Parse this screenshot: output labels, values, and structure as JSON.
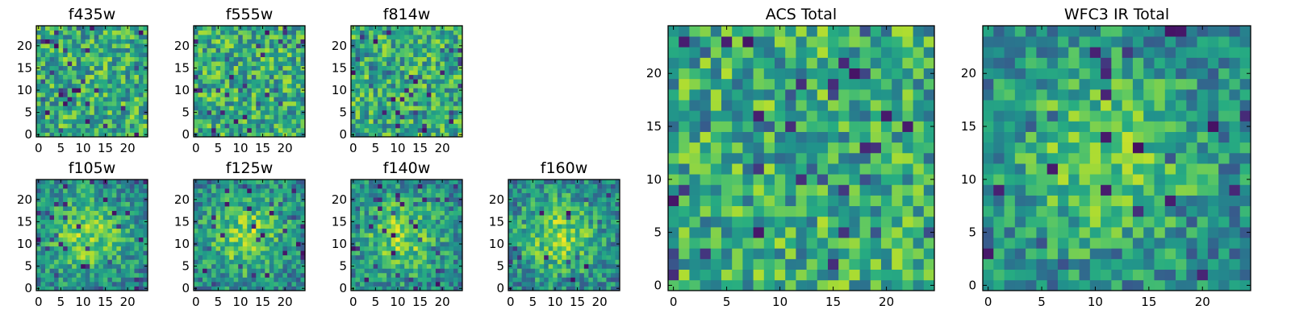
{
  "chart_data": [
    {
      "id": "f435w",
      "type": "heatmap",
      "title": "f435w",
      "shape": [
        25,
        25
      ],
      "colormap": "viridis",
      "xlim": [
        0,
        24
      ],
      "ylim": [
        0,
        24
      ],
      "xticks": [
        0,
        5,
        10,
        15,
        20
      ],
      "yticks": [
        0,
        5,
        10,
        15,
        20
      ],
      "texture": "noise",
      "seed": 11
    },
    {
      "id": "f555w",
      "type": "heatmap",
      "title": "f555w",
      "shape": [
        25,
        25
      ],
      "colormap": "viridis",
      "xlim": [
        0,
        24
      ],
      "ylim": [
        0,
        24
      ],
      "xticks": [
        0,
        5,
        10,
        15,
        20
      ],
      "yticks": [
        0,
        5,
        10,
        15,
        20
      ],
      "texture": "noise",
      "seed": 23
    },
    {
      "id": "f814w",
      "type": "heatmap",
      "title": "f814w",
      "shape": [
        25,
        25
      ],
      "colormap": "viridis",
      "xlim": [
        0,
        24
      ],
      "ylim": [
        0,
        24
      ],
      "xticks": [
        0,
        5,
        10,
        15,
        20
      ],
      "yticks": [
        0,
        5,
        10,
        15,
        20
      ],
      "texture": "noise",
      "seed": 37
    },
    {
      "id": "f105w",
      "type": "heatmap",
      "title": "f105w",
      "shape": [
        25,
        25
      ],
      "colormap": "viridis",
      "xlim": [
        0,
        24
      ],
      "ylim": [
        0,
        24
      ],
      "xticks": [
        0,
        5,
        10,
        15,
        20
      ],
      "yticks": [
        0,
        5,
        10,
        15,
        20
      ],
      "texture": "centered-blob",
      "seed": 41
    },
    {
      "id": "f125w",
      "type": "heatmap",
      "title": "f125w",
      "shape": [
        25,
        25
      ],
      "colormap": "viridis",
      "xlim": [
        0,
        24
      ],
      "ylim": [
        0,
        24
      ],
      "xticks": [
        0,
        5,
        10,
        15,
        20
      ],
      "yticks": [
        0,
        5,
        10,
        15,
        20
      ],
      "texture": "centered-blob",
      "seed": 53
    },
    {
      "id": "f140w",
      "type": "heatmap",
      "title": "f140w",
      "shape": [
        25,
        25
      ],
      "colormap": "viridis",
      "xlim": [
        0,
        24
      ],
      "ylim": [
        0,
        24
      ],
      "xticks": [
        0,
        5,
        10,
        15,
        20
      ],
      "yticks": [
        0,
        5,
        10,
        15,
        20
      ],
      "texture": "centered-blob",
      "seed": 67
    },
    {
      "id": "f160w",
      "type": "heatmap",
      "title": "f160w",
      "shape": [
        25,
        25
      ],
      "colormap": "viridis",
      "xlim": [
        0,
        24
      ],
      "ylim": [
        0,
        24
      ],
      "xticks": [
        0,
        5,
        10,
        15,
        20
      ],
      "yticks": [
        0,
        5,
        10,
        15,
        20
      ],
      "texture": "centered-blob",
      "seed": 79
    },
    {
      "id": "acs-total",
      "type": "heatmap",
      "title": "ACS Total",
      "shape": [
        25,
        25
      ],
      "colormap": "viridis",
      "xlim": [
        0,
        24
      ],
      "ylim": [
        0,
        24
      ],
      "xticks": [
        0,
        5,
        10,
        15,
        20
      ],
      "yticks": [
        0,
        5,
        10,
        15,
        20
      ],
      "texture": "noise",
      "seed": 83
    },
    {
      "id": "wfc3-ir-total",
      "type": "heatmap",
      "title": "WFC3 IR Total",
      "shape": [
        25,
        25
      ],
      "colormap": "viridis",
      "xlim": [
        0,
        24
      ],
      "ylim": [
        0,
        24
      ],
      "xticks": [
        0,
        5,
        10,
        15,
        20
      ],
      "yticks": [
        0,
        5,
        10,
        15,
        20
      ],
      "texture": "centered-blob",
      "seed": 97
    }
  ]
}
